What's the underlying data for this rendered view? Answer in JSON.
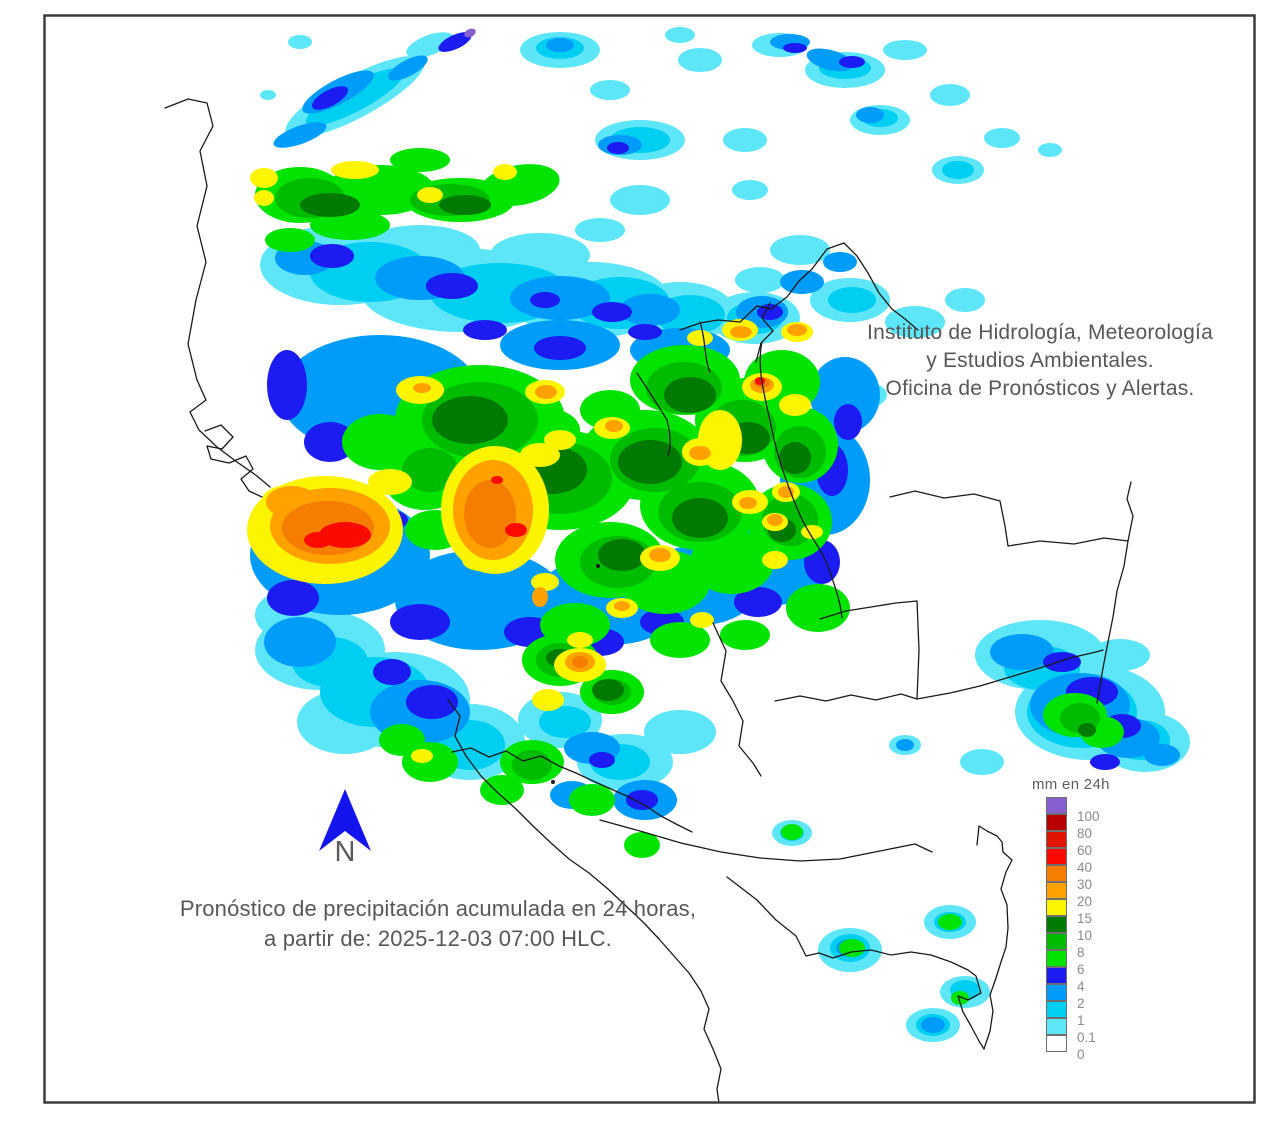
{
  "header": {
    "line1": "Instituto de Hidrología, Meteorología",
    "line2": "y Estudios Ambientales.",
    "line3": "Oficina de Pronósticos y Alertas."
  },
  "caption": {
    "line1": "Pronóstico de precipitación acumulada en 24 horas,",
    "line2": "a partir de: 2025-12-03 07:00 HLC."
  },
  "compass": {
    "label": "N",
    "arrow_color": "#1414EE"
  },
  "legend": {
    "title": "mm en 24h",
    "unit": "mm",
    "items": [
      {
        "value": "100",
        "color": "#8660CE"
      },
      {
        "value": "80",
        "color": "#B80000"
      },
      {
        "value": "60",
        "color": "#E01400"
      },
      {
        "value": "40",
        "color": "#FA0A00"
      },
      {
        "value": "30",
        "color": "#F57E00"
      },
      {
        "value": "20",
        "color": "#FFA200"
      },
      {
        "value": "15",
        "color": "#FCF400"
      },
      {
        "value": "10",
        "color": "#007A00"
      },
      {
        "value": "8",
        "color": "#00BC00"
      },
      {
        "value": "6",
        "color": "#00E400"
      },
      {
        "value": "4",
        "color": "#1B1BF2"
      },
      {
        "value": "2",
        "color": "#009CFA"
      },
      {
        "value": "1",
        "color": "#00CFF2"
      },
      {
        "value": "0.1",
        "color": "#5CE6F8"
      },
      {
        "value": "0",
        "color": "#FFFFFF"
      }
    ]
  },
  "map": {
    "frame_color": "#3C3C3C",
    "border_color": "#1A1A1A",
    "background": "#FFFFFF"
  }
}
